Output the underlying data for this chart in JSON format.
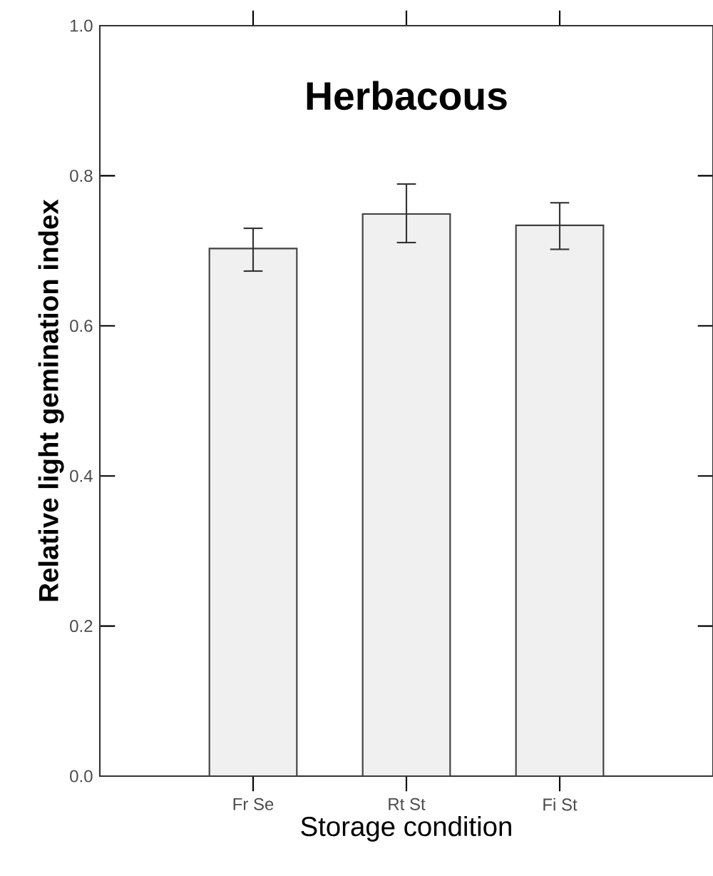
{
  "chart_data": {
    "type": "bar",
    "title": "Herbacous",
    "xlabel": "Storage condition",
    "ylabel": "Relative light gemination index",
    "categories": [
      "Fr Se",
      "Rt St",
      "Fi St"
    ],
    "values": [
      0.703,
      0.749,
      0.734
    ],
    "errors": [
      [
        0.673,
        0.73
      ],
      [
        0.711,
        0.789
      ],
      [
        0.702,
        0.764
      ]
    ],
    "color": "#f0f0f0",
    "ylim": [
      0,
      1.0
    ],
    "yticks": [
      {
        "value": 0,
        "label": "0.0"
      },
      {
        "value": 0.2,
        "label": "0.2"
      },
      {
        "value": 0.4,
        "label": "0.4"
      },
      {
        "value": 0.6,
        "label": "0.6"
      },
      {
        "value": 0.8,
        "label": "0.8"
      },
      {
        "value": 1.0,
        "label": "1.0"
      }
    ],
    "grid": false
  }
}
